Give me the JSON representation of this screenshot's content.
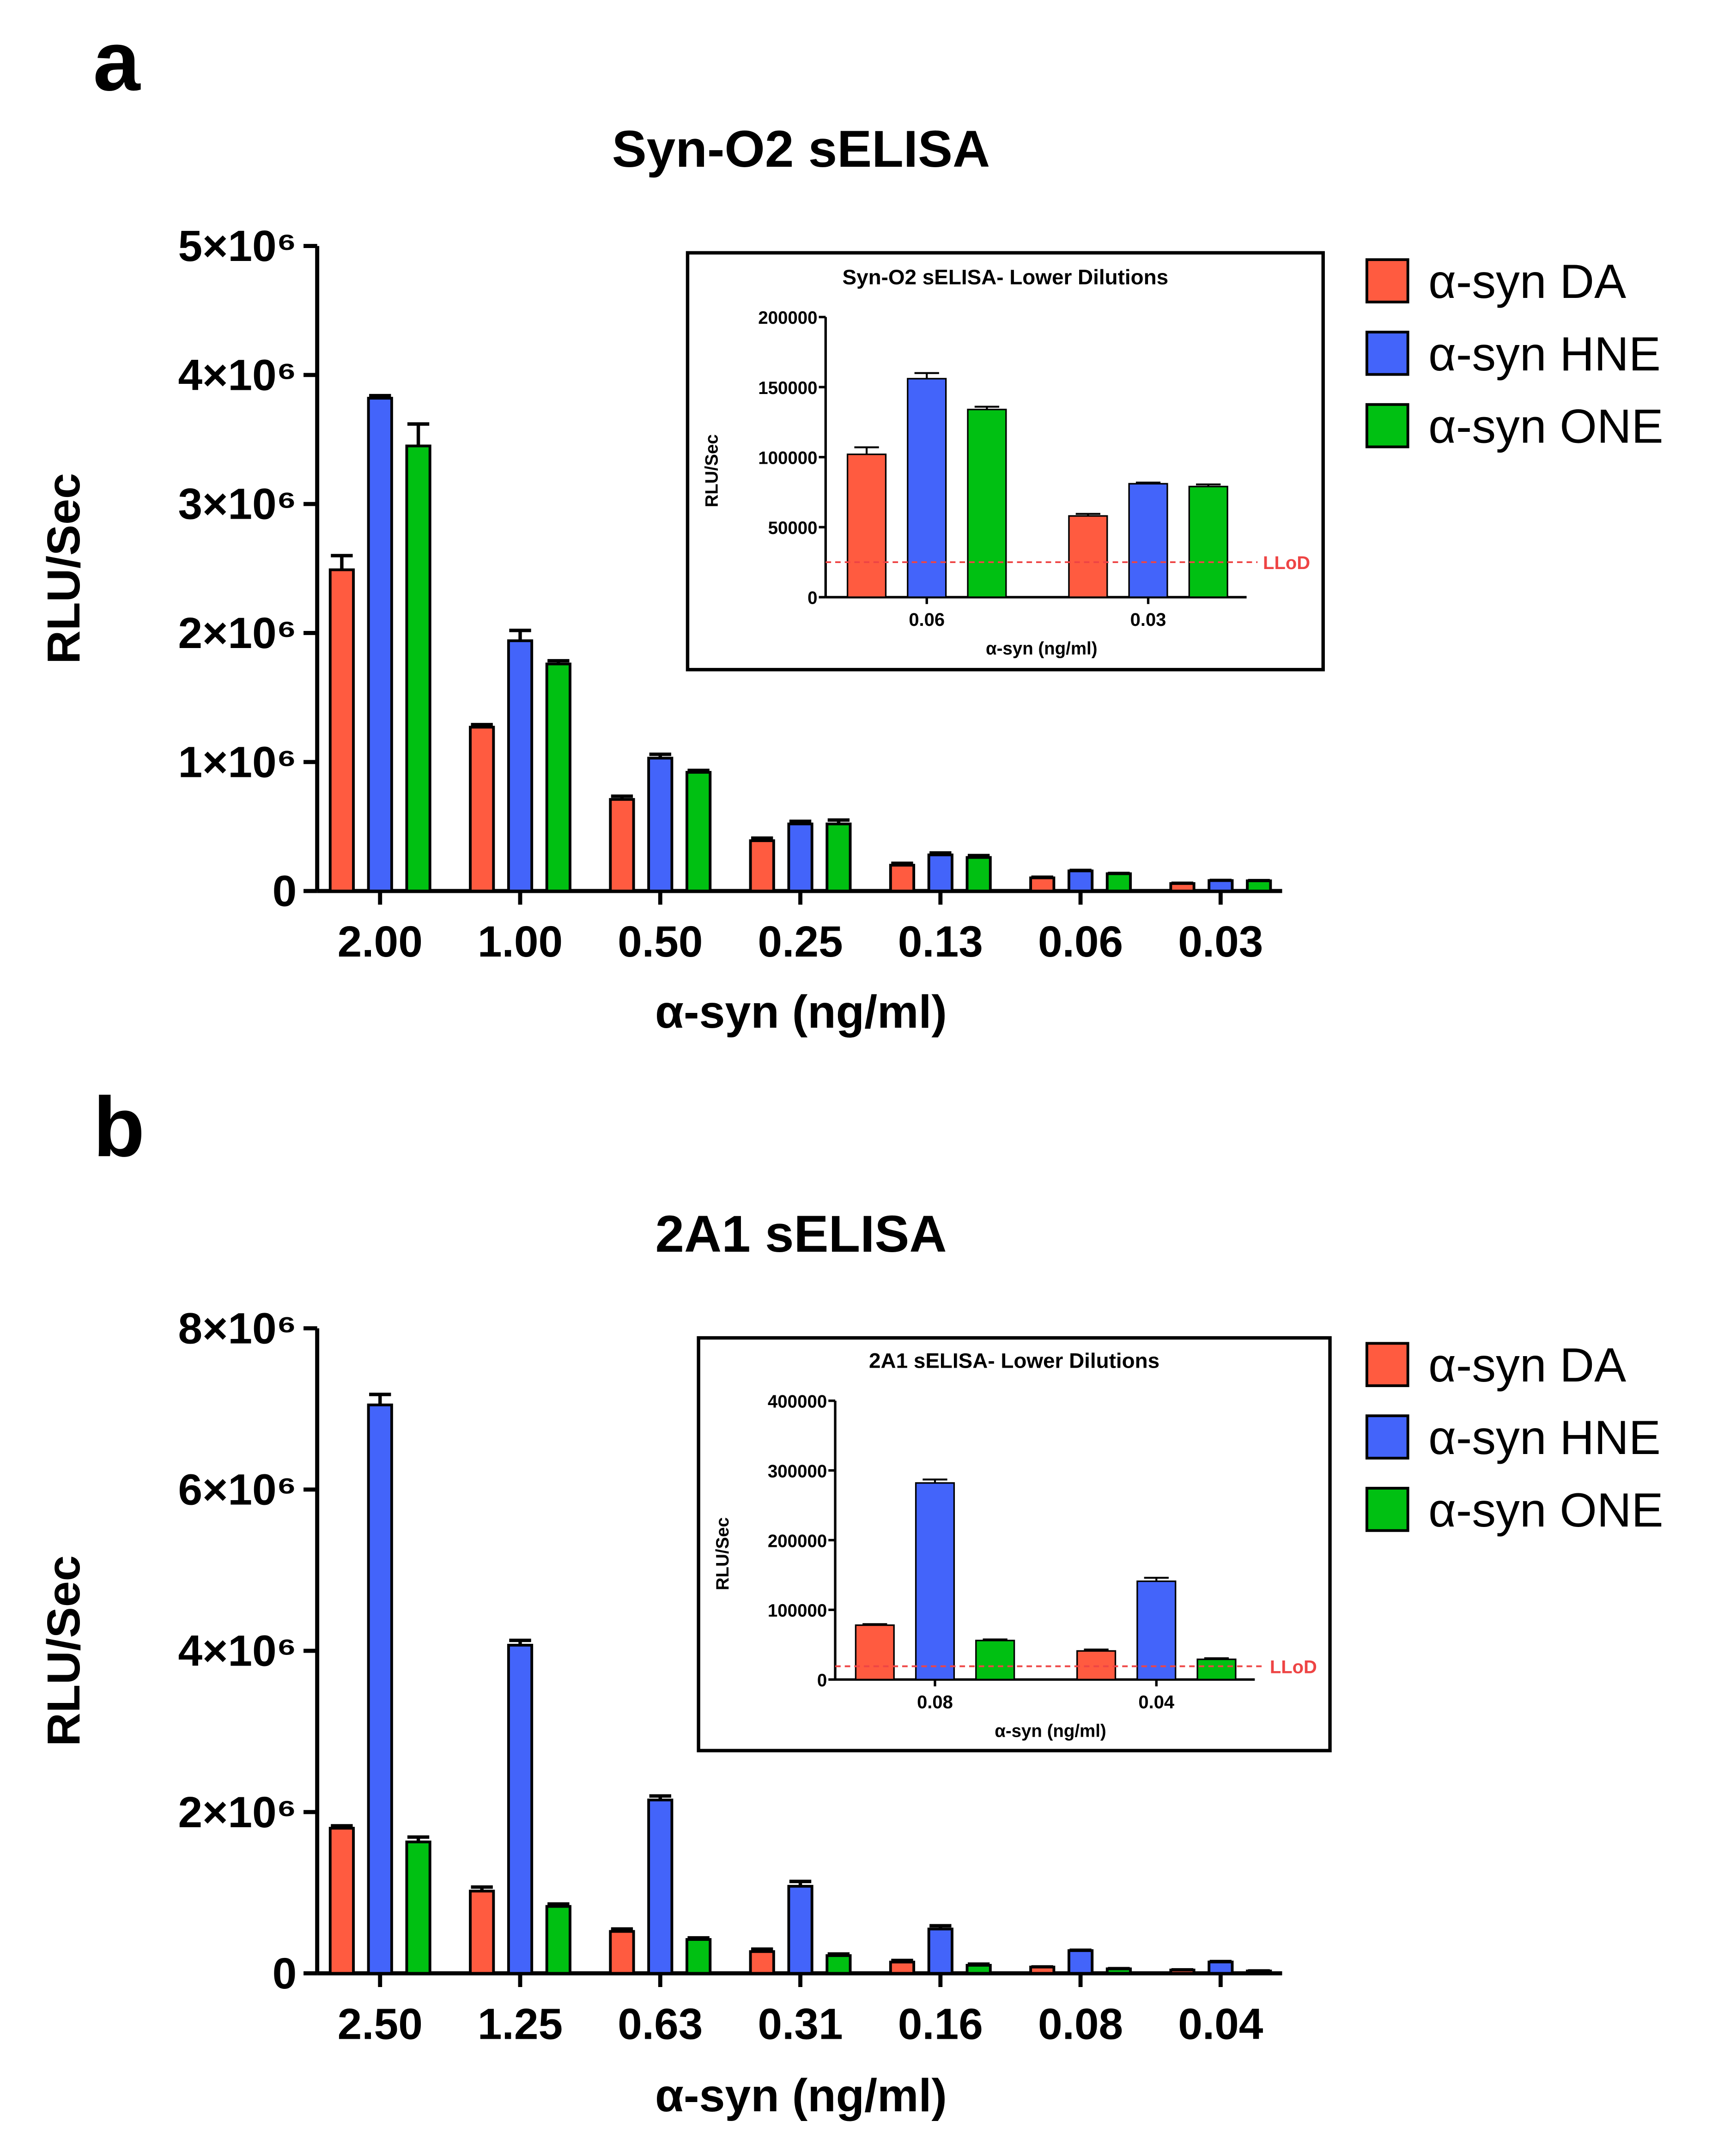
{
  "colors": {
    "DA": "#FF5B40",
    "HNE": "#4364FA",
    "ONE": "#00C012",
    "lod": "#EE4444",
    "axis": "#000000"
  },
  "chart_data": [
    {
      "panel": "a",
      "type": "bar",
      "title": "Syn-O2 sELISA",
      "xlabel": "α-syn (ng/ml)",
      "ylabel": "RLU/Sec",
      "ylim": [
        0,
        5000000
      ],
      "yticks": [
        0,
        1000000,
        2000000,
        3000000,
        4000000,
        5000000
      ],
      "ytick_labels": [
        "0",
        "1×10⁶",
        "2×10⁶",
        "3×10⁶",
        "4×10⁶",
        "5×10⁶"
      ],
      "categories": [
        "2.00",
        "1.00",
        "0.50",
        "0.25",
        "0.13",
        "0.06",
        "0.03"
      ],
      "legend": "right",
      "series": [
        {
          "name": "α-syn DA",
          "key": "DA",
          "values": [
            2490000,
            1270000,
            710000,
            390000,
            200000,
            102000,
            58000
          ],
          "errors": [
            110000,
            20000,
            25000,
            20000,
            15000,
            5000,
            2000
          ]
        },
        {
          "name": "α-syn HNE",
          "key": "HNE",
          "values": [
            3820000,
            1940000,
            1030000,
            520000,
            280000,
            156000,
            81000
          ],
          "errors": [
            20000,
            80000,
            30000,
            20000,
            15000,
            4000,
            1000
          ]
        },
        {
          "name": "α-syn ONE",
          "key": "ONE",
          "values": [
            3450000,
            1760000,
            920000,
            520000,
            260000,
            134000,
            79000
          ],
          "errors": [
            170000,
            25000,
            15000,
            30000,
            15000,
            2000,
            1500
          ]
        }
      ],
      "inset": {
        "type": "bar",
        "title": "Syn-O2 sELISA- Lower Dilutions",
        "xlabel": "α-syn (ng/ml)",
        "ylabel": "RLU/Sec",
        "ylim": [
          0,
          200000
        ],
        "yticks": [
          0,
          50000,
          100000,
          150000,
          200000
        ],
        "ytick_labels": [
          "0",
          "50000",
          "100000",
          "150000",
          "200000"
        ],
        "categories": [
          "0.06",
          "0.03"
        ],
        "lod_value": 25000,
        "lod_label": "LLoD",
        "series": [
          {
            "name": "α-syn DA",
            "key": "DA",
            "values": [
              102000,
              58000
            ],
            "errors": [
              5000,
              1500
            ]
          },
          {
            "name": "α-syn HNE",
            "key": "HNE",
            "values": [
              156000,
              81000
            ],
            "errors": [
              4000,
              800
            ]
          },
          {
            "name": "α-syn ONE",
            "key": "ONE",
            "values": [
              134000,
              79000
            ],
            "errors": [
              2000,
              1500
            ]
          }
        ]
      }
    },
    {
      "panel": "b",
      "type": "bar",
      "title": "2A1 sELISA",
      "xlabel": "α-syn (ng/ml)",
      "ylabel": "RLU/Sec",
      "ylim": [
        0,
        8000000
      ],
      "yticks": [
        0,
        2000000,
        4000000,
        6000000,
        8000000
      ],
      "ytick_labels": [
        "0",
        "2×10⁶",
        "4×10⁶",
        "6×10⁶",
        "8×10⁶"
      ],
      "categories": [
        "2.50",
        "1.25",
        "0.63",
        "0.31",
        "0.16",
        "0.08",
        "0.04"
      ],
      "legend": "right",
      "series": [
        {
          "name": "α-syn DA",
          "key": "DA",
          "values": [
            1800000,
            1020000,
            520000,
            270000,
            140000,
            78000,
            41000
          ],
          "errors": [
            30000,
            50000,
            30000,
            30000,
            20000,
            2000,
            2000
          ]
        },
        {
          "name": "α-syn HNE",
          "key": "HNE",
          "values": [
            7050000,
            4070000,
            2150000,
            1080000,
            550000,
            282000,
            141000
          ],
          "errors": [
            130000,
            60000,
            50000,
            60000,
            40000,
            5000,
            5000
          ]
        },
        {
          "name": "α-syn ONE",
          "key": "ONE",
          "values": [
            1630000,
            830000,
            420000,
            220000,
            100000,
            56000,
            29000
          ],
          "errors": [
            60000,
            30000,
            20000,
            20000,
            15000,
            2000,
            1500
          ]
        }
      ],
      "inset": {
        "type": "bar",
        "title": "2A1 sELISA- Lower Dilutions",
        "xlabel": "α-syn (ng/ml)",
        "ylabel": "RLU/Sec",
        "ylim": [
          0,
          400000
        ],
        "yticks": [
          0,
          100000,
          200000,
          300000,
          400000
        ],
        "ytick_labels": [
          "0",
          "100000",
          "200000",
          "300000",
          "400000"
        ],
        "categories": [
          "0.08",
          "0.04"
        ],
        "lod_value": 19000,
        "lod_label": "LLoD",
        "series": [
          {
            "name": "α-syn DA",
            "key": "DA",
            "values": [
              78000,
              41000
            ],
            "errors": [
              1500,
              2000
            ]
          },
          {
            "name": "α-syn HNE",
            "key": "HNE",
            "values": [
              282000,
              141000
            ],
            "errors": [
              5000,
              5000
            ]
          },
          {
            "name": "α-syn ONE",
            "key": "ONE",
            "values": [
              56000,
              29000
            ],
            "errors": [
              1500,
              1500
            ]
          }
        ]
      }
    }
  ]
}
